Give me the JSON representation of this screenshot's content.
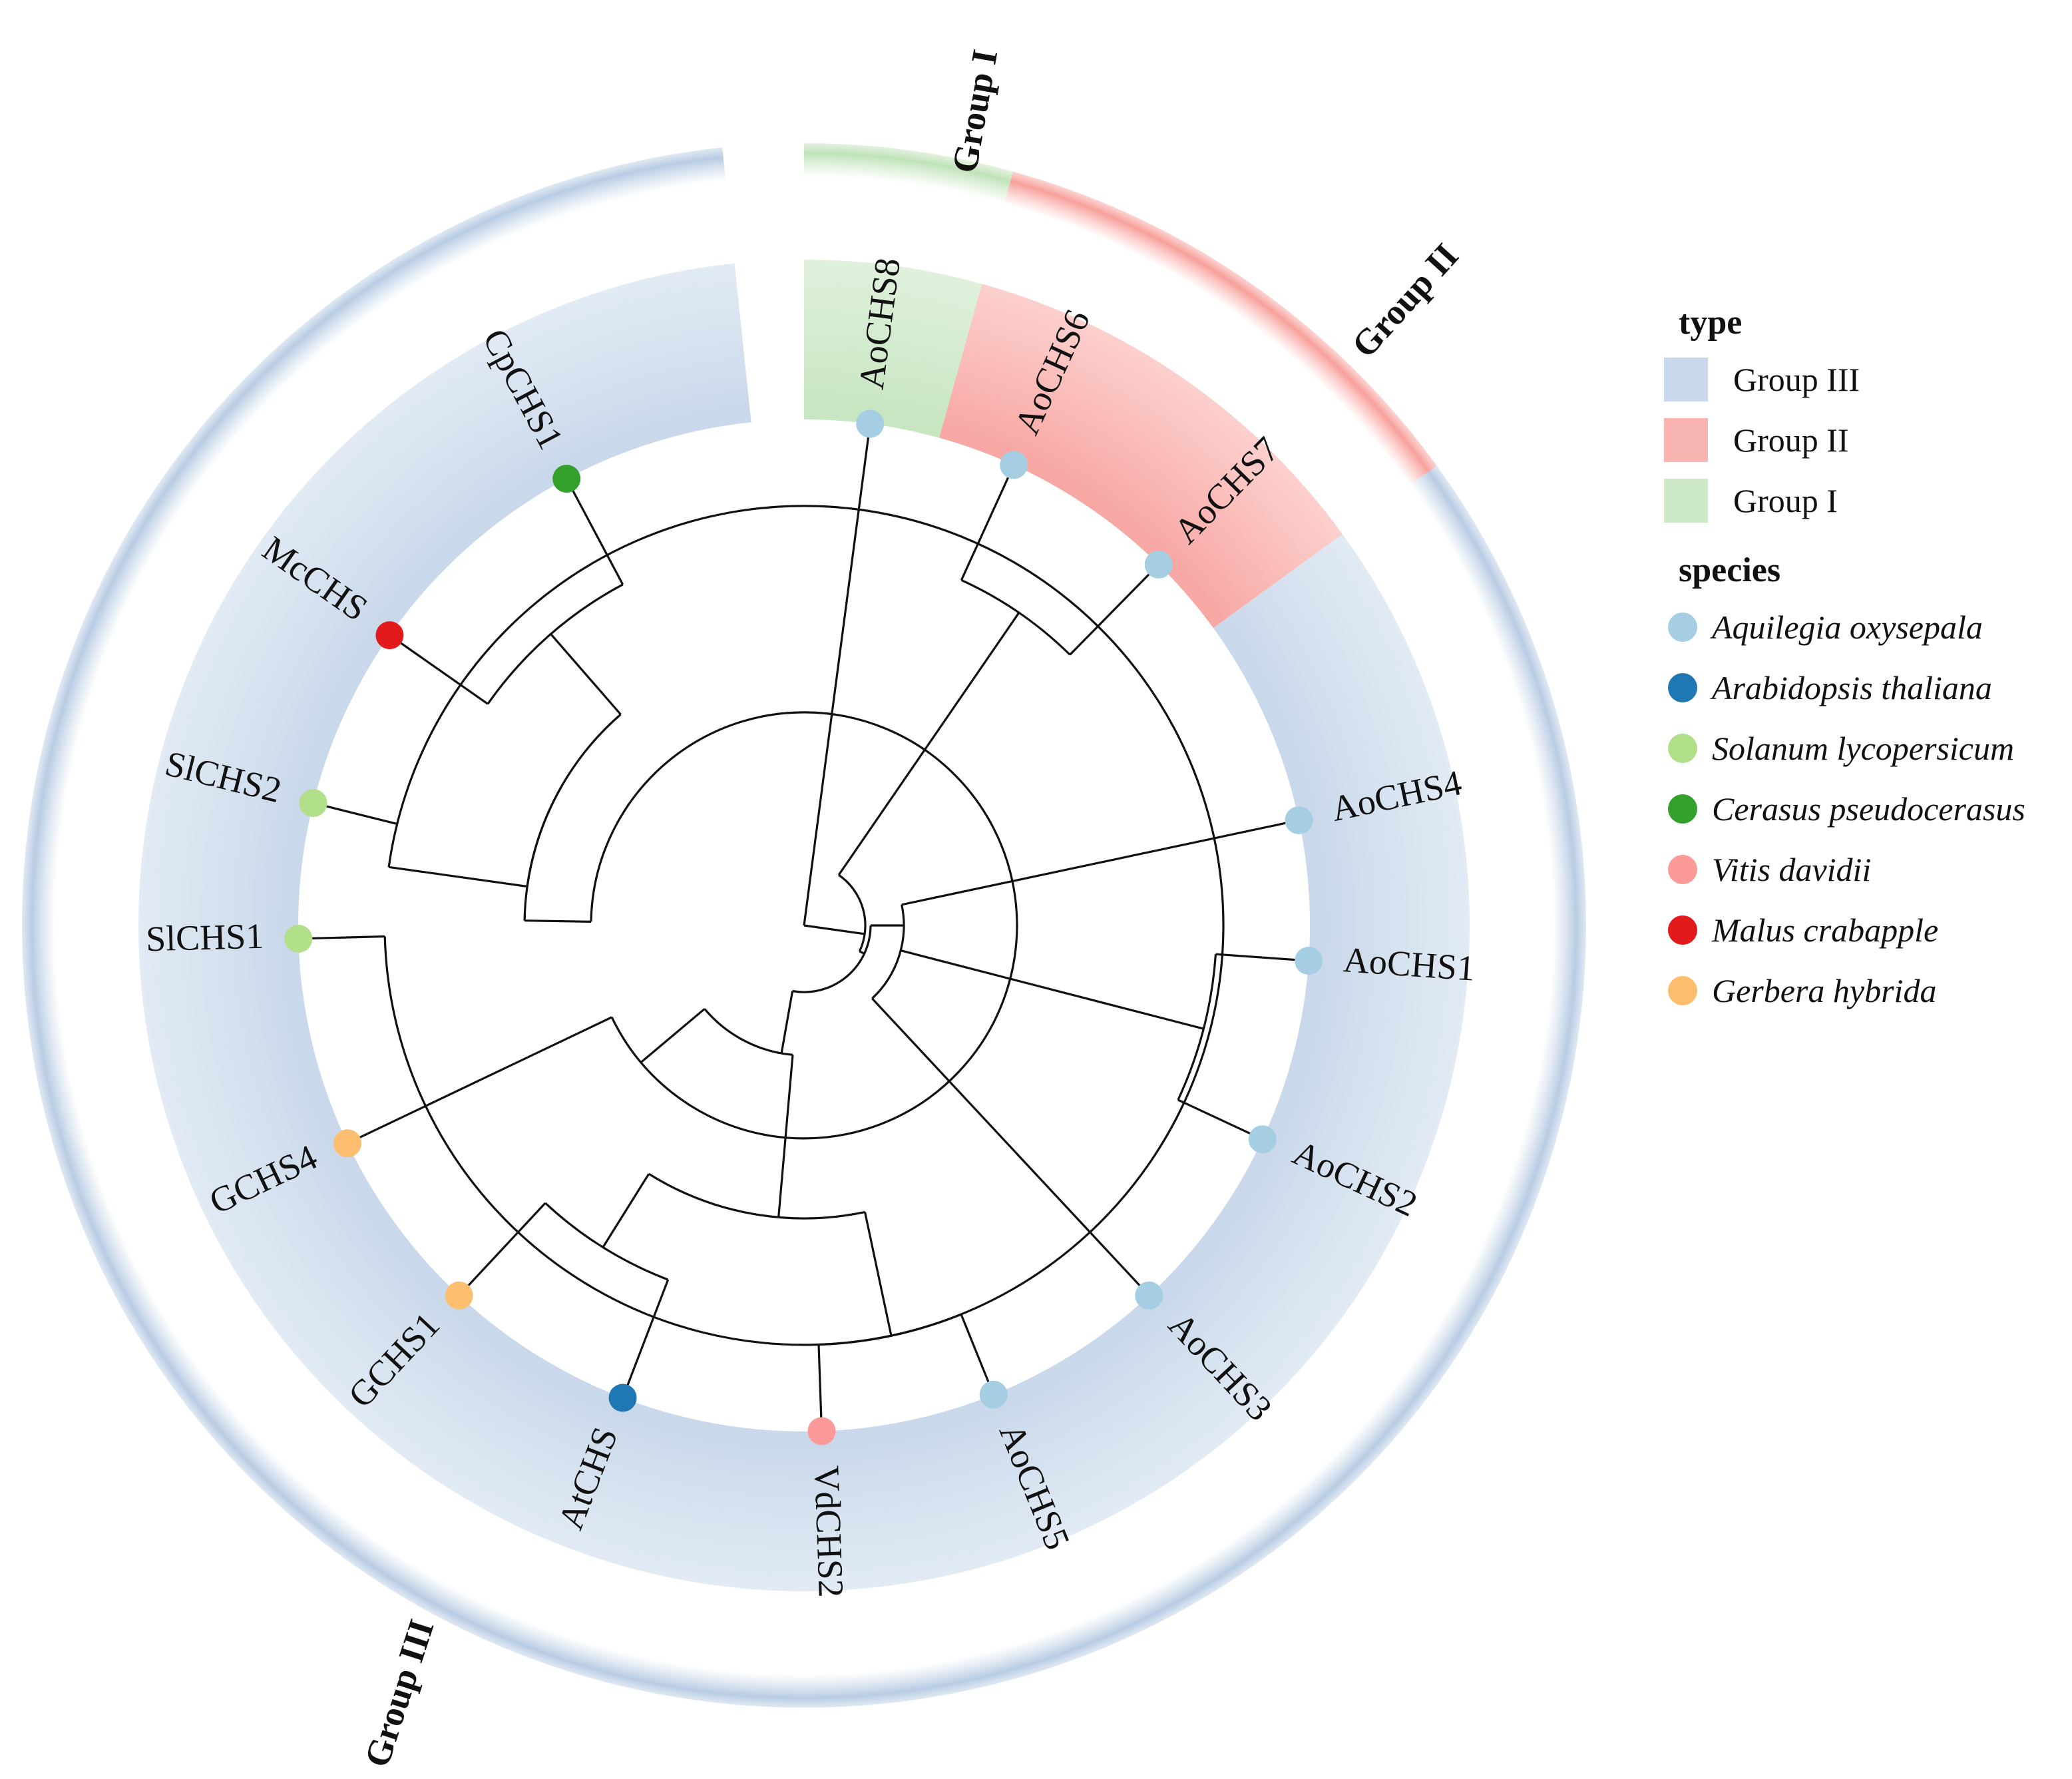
{
  "type_legend": {
    "title": "type",
    "items": [
      {
        "label": "Group III",
        "color": "#c9d8ea"
      },
      {
        "label": "Group II",
        "color": "#f8b4b0"
      },
      {
        "label": "Group I",
        "color": "#cde9c7"
      }
    ]
  },
  "species_legend": {
    "title": "species",
    "items": [
      {
        "label": "Aquilegia oxysepala",
        "color": "#a6cee3"
      },
      {
        "label": "Arabidopsis thaliana",
        "color": "#1f78b4"
      },
      {
        "label": "Solanum lycopersicum",
        "color": "#b2df8a"
      },
      {
        "label": "Cerasus pseudocerasus",
        "color": "#33a02c"
      },
      {
        "label": "Vitis davidii",
        "color": "#fb9a99"
      },
      {
        "label": "Malus crabapple",
        "color": "#e31a1c"
      },
      {
        "label": "Gerbera hybrida",
        "color": "#fdbf6f"
      }
    ]
  },
  "group_labels": {
    "group1": "Group I",
    "group2": "Group II",
    "group3": "Group III"
  },
  "tips": [
    {
      "id": "AoCHS8",
      "label": "AoCHS8",
      "species": 0,
      "group": "Group I"
    },
    {
      "id": "AoCHS6",
      "label": "AoCHS6",
      "species": 0,
      "group": "Group II"
    },
    {
      "id": "AoCHS7",
      "label": "AoCHS7",
      "species": 0,
      "group": "Group II"
    },
    {
      "id": "AoCHS4",
      "label": "AoCHS4",
      "species": 0,
      "group": "Group III"
    },
    {
      "id": "AoCHS1",
      "label": "AoCHS1",
      "species": 0,
      "group": "Group III"
    },
    {
      "id": "AoCHS2",
      "label": "AoCHS2",
      "species": 0,
      "group": "Group III"
    },
    {
      "id": "AoCHS3",
      "label": "AoCHS3",
      "species": 0,
      "group": "Group III"
    },
    {
      "id": "AoCHS5",
      "label": "AoCHS5",
      "species": 0,
      "group": "Group III"
    },
    {
      "id": "VdCHS2",
      "label": "VdCHS2",
      "species": 4,
      "group": "Group III"
    },
    {
      "id": "AtCHS",
      "label": "AtCHS",
      "species": 1,
      "group": "Group III"
    },
    {
      "id": "GCHS1",
      "label": "GCHS1",
      "species": 6,
      "group": "Group III"
    },
    {
      "id": "GCHS4",
      "label": "GCHS4",
      "species": 6,
      "group": "Group III"
    },
    {
      "id": "SlCHS1",
      "label": "SlCHS1",
      "species": 2,
      "group": "Group III"
    },
    {
      "id": "SlCHS2",
      "label": "SlCHS2",
      "species": 2,
      "group": "Group III"
    },
    {
      "id": "McCHS",
      "label": "McCHS",
      "species": 5,
      "group": "Group III"
    },
    {
      "id": "CpCHS1",
      "label": "CpCHS1",
      "species": 3,
      "group": "Group III"
    }
  ]
}
